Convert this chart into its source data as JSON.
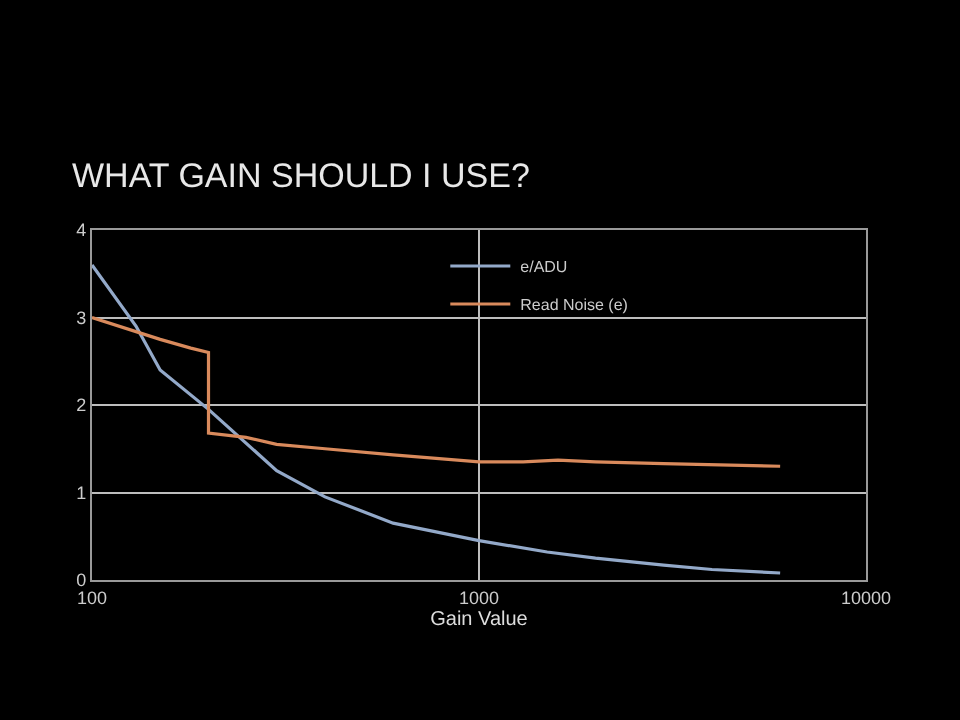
{
  "chart_data": {
    "type": "line",
    "title": "WHAT GAIN SHOULD I USE?",
    "xlabel": "Gain Value",
    "log": "x",
    "xlim": [
      100,
      10000
    ],
    "xticks": [
      100,
      1000,
      10000
    ],
    "ylim": [
      0,
      4
    ],
    "yticks": [
      0,
      1,
      2,
      3,
      4
    ],
    "grid": true,
    "legend": "top right",
    "marker": "none",
    "line_style": "solid",
    "series": [
      {
        "name": "e/ADU",
        "color": "#93a9c9",
        "x": [
          100,
          130,
          150,
          200,
          300,
          400,
          600,
          1000,
          1500,
          2000,
          3000,
          4000,
          6000
        ],
        "values": [
          3.6,
          2.9,
          2.4,
          1.95,
          1.25,
          0.95,
          0.65,
          0.45,
          0.32,
          0.25,
          0.17,
          0.12,
          0.08
        ]
      },
      {
        "name": "Read Noise (e)",
        "color": "#d98a5c",
        "x": [
          100,
          150,
          180,
          200,
          200,
          250,
          300,
          400,
          600,
          1000,
          1300,
          1600,
          2000,
          3000,
          6000
        ],
        "values": [
          3.0,
          2.75,
          2.65,
          2.6,
          1.68,
          1.63,
          1.55,
          1.5,
          1.43,
          1.35,
          1.35,
          1.37,
          1.35,
          1.33,
          1.3
        ]
      }
    ]
  }
}
